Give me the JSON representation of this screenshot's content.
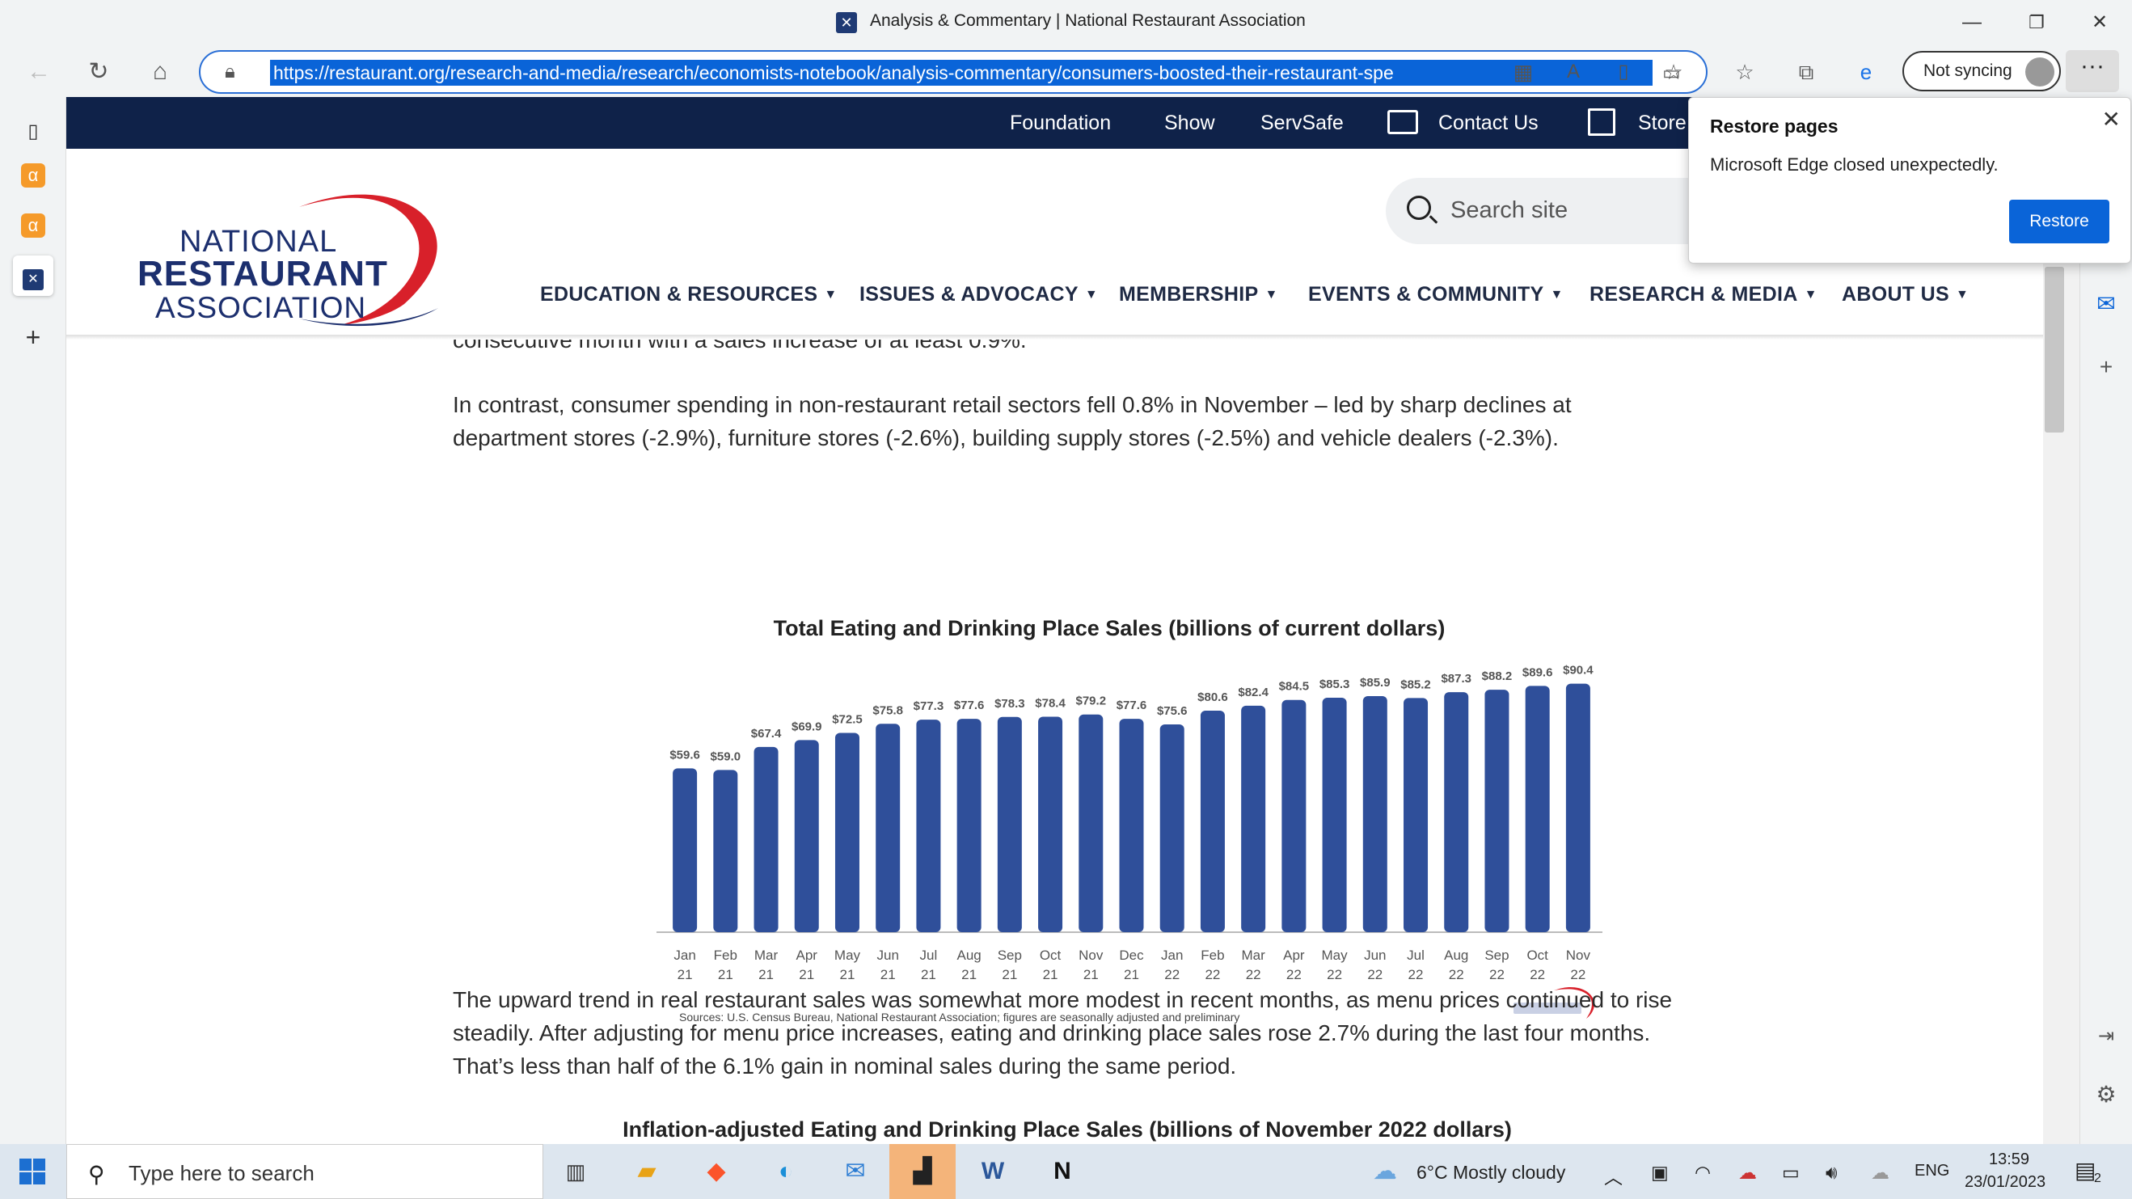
{
  "window": {
    "tab_title": "Analysis & Commentary | National Restaurant Association",
    "favicon": "✕",
    "min": "—",
    "max": "❐",
    "close": "✕"
  },
  "toolbar": {
    "url": "https://restaurant.org/research-and-media/research/economists-notebook/analysis-commentary/consumers-boosted-their-restaurant-spe",
    "sync_label": "Not syncing",
    "more": "···"
  },
  "topnav": {
    "items": [
      "Foundation",
      "Show",
      "ServSafe",
      "Contact Us",
      "Store"
    ]
  },
  "logo": {
    "line1": "NATIONAL",
    "line2": "RESTAURANT",
    "line3": "ASSOCIATION"
  },
  "search": {
    "placeholder": "Search site"
  },
  "mainnav": {
    "items": [
      "EDUCATION & RESOURCES",
      "ISSUES & ADVOCACY",
      "MEMBERSHIP",
      "EVENTS & COMMUNITY",
      "RESEARCH & MEDIA",
      "ABOUT US"
    ]
  },
  "article": {
    "para0": "consecutive month with a sales increase of at least 0.9%.",
    "para1": "In contrast, consumer spending in non-restaurant retail sectors fell 0.8% in November – led by sharp declines at department stores (-2.9%), furniture stores (-2.6%), building supply stores (-2.5%) and vehicle dealers (-2.3%).",
    "para2": "The upward trend in real restaurant sales was somewhat more modest in recent months, as menu prices continued to rise steadily. After adjusting for menu price increases, eating and drinking place sales rose 2.7% during the last four months. That’s less than half of the 6.1% gain in nominal sales during the same period.",
    "chart2_title": "Inflation-adjusted Eating and Drinking Place Sales (billions of November 2022 dollars)"
  },
  "chart_data": {
    "type": "bar",
    "title": "Total Eating and Drinking Place Sales (billions of current dollars)",
    "categories": [
      [
        "Jan",
        "21"
      ],
      [
        "Feb",
        "21"
      ],
      [
        "Mar",
        "21"
      ],
      [
        "Apr",
        "21"
      ],
      [
        "May",
        "21"
      ],
      [
        "Jun",
        "21"
      ],
      [
        "Jul",
        "21"
      ],
      [
        "Aug",
        "21"
      ],
      [
        "Sep",
        "21"
      ],
      [
        "Oct",
        "21"
      ],
      [
        "Nov",
        "21"
      ],
      [
        "Dec",
        "21"
      ],
      [
        "Jan",
        "22"
      ],
      [
        "Feb",
        "22"
      ],
      [
        "Mar",
        "22"
      ],
      [
        "Apr",
        "22"
      ],
      [
        "May",
        "22"
      ],
      [
        "Jun",
        "22"
      ],
      [
        "Jul",
        "22"
      ],
      [
        "Aug",
        "22"
      ],
      [
        "Sep",
        "22"
      ],
      [
        "Oct",
        "22"
      ],
      [
        "Nov",
        "22"
      ]
    ],
    "values": [
      59.6,
      59.0,
      67.4,
      69.9,
      72.5,
      75.8,
      77.3,
      77.6,
      78.3,
      78.4,
      79.2,
      77.6,
      75.6,
      80.6,
      82.4,
      84.5,
      85.3,
      85.9,
      85.2,
      87.3,
      88.2,
      89.6,
      90.4
    ],
    "labels": [
      "$59.6",
      "$59.0",
      "$67.4",
      "$69.9",
      "$72.5",
      "$75.8",
      "$77.3",
      "$77.6",
      "$78.3",
      "$78.4",
      "$79.2",
      "$77.6",
      "$75.6",
      "$80.6",
      "$82.4",
      "$84.5",
      "$85.3",
      "$85.9",
      "$85.2",
      "$87.3",
      "$88.2",
      "$89.6",
      "$90.4"
    ],
    "source": "Sources: U.S. Census Bureau, National Restaurant Association; figures are seasonally adjusted and preliminary",
    "bar_color": "#2f4f9a",
    "ylim": [
      0,
      95
    ]
  },
  "restore_popup": {
    "title": "Restore pages",
    "message": "Microsoft Edge closed unexpectedly.",
    "button": "Restore",
    "close": "✕"
  },
  "taskbar": {
    "search_placeholder": "Type here to search",
    "weather": "6°C  Mostly cloudy",
    "language": "ENG",
    "time": "13:59",
    "date": "23/01/2023",
    "notifications": "2"
  }
}
